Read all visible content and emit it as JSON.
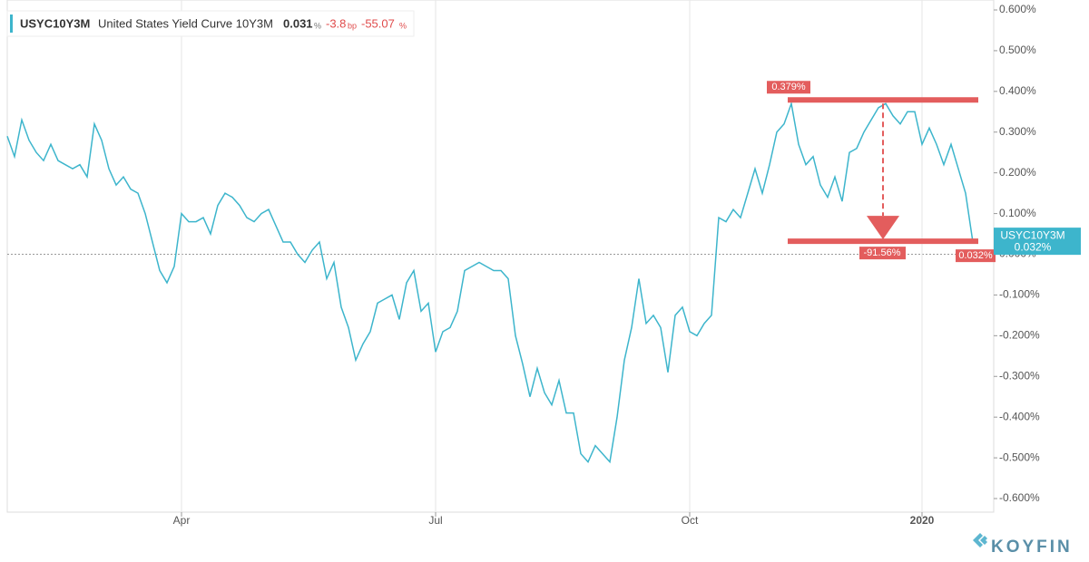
{
  "chart_data": {
    "type": "line",
    "header": {
      "ticker": "USYC10Y3M",
      "name": "United States Yield Curve 10Y3M",
      "value": 0.031,
      "value_unit": "%",
      "change": -3.8,
      "change_unit": "bp",
      "change_pct": -55.07,
      "change_pct_unit": "%"
    },
    "categories": [
      null,
      null,
      null,
      null,
      null,
      null,
      null,
      null,
      null,
      null,
      null,
      null,
      null,
      null,
      null,
      null,
      null,
      null,
      null,
      null,
      null,
      null,
      null,
      null,
      "Apr",
      null,
      null,
      null,
      null,
      null,
      null,
      null,
      null,
      null,
      null,
      null,
      null,
      null,
      null,
      null,
      null,
      null,
      null,
      null,
      null,
      null,
      null,
      null,
      null,
      null,
      null,
      null,
      null,
      null,
      null,
      null,
      null,
      null,
      null,
      "Jul",
      null,
      null,
      null,
      null,
      null,
      null,
      null,
      null,
      null,
      null,
      null,
      null,
      null,
      null,
      null,
      null,
      null,
      null,
      null,
      null,
      null,
      null,
      null,
      null,
      null,
      null,
      null,
      null,
      null,
      null,
      null,
      null,
      null,
      null,
      "Oct",
      null,
      null,
      null,
      null,
      null,
      null,
      null,
      null,
      null,
      null,
      null,
      null,
      null,
      null,
      null,
      null,
      null,
      null,
      null,
      null,
      null,
      null,
      null,
      null,
      null,
      null,
      null,
      null,
      null,
      null,
      null,
      "2020",
      null,
      null,
      null,
      null,
      null,
      null,
      null
    ],
    "series": [
      {
        "name": "USYC10Y3M",
        "color": "#3db5cc",
        "values": [
          0.29,
          0.24,
          0.33,
          0.28,
          0.25,
          0.23,
          0.27,
          0.23,
          0.22,
          0.21,
          0.22,
          0.19,
          0.32,
          0.28,
          0.21,
          0.17,
          0.19,
          0.16,
          0.15,
          0.1,
          0.03,
          -0.04,
          -0.07,
          -0.03,
          0.1,
          0.08,
          0.08,
          0.09,
          0.05,
          0.12,
          0.15,
          0.14,
          0.12,
          0.09,
          0.08,
          0.1,
          0.11,
          0.07,
          0.03,
          0.03,
          0.0,
          -0.02,
          0.01,
          0.03,
          -0.06,
          -0.02,
          -0.13,
          -0.18,
          -0.26,
          -0.22,
          -0.19,
          -0.12,
          -0.11,
          -0.1,
          -0.16,
          -0.07,
          -0.04,
          -0.14,
          -0.12,
          -0.24,
          -0.19,
          -0.18,
          -0.14,
          -0.04,
          -0.03,
          -0.02,
          -0.03,
          -0.04,
          -0.04,
          -0.06,
          -0.2,
          -0.27,
          -0.35,
          -0.28,
          -0.34,
          -0.37,
          -0.31,
          -0.39,
          -0.39,
          -0.49,
          -0.51,
          -0.47,
          -0.49,
          -0.51,
          -0.4,
          -0.26,
          -0.18,
          -0.06,
          -0.17,
          -0.15,
          -0.18,
          -0.29,
          -0.15,
          -0.13,
          -0.19,
          -0.2,
          -0.17,
          -0.15,
          0.09,
          0.08,
          0.11,
          0.09,
          0.15,
          0.21,
          0.15,
          0.22,
          0.3,
          0.32,
          0.37,
          0.27,
          0.22,
          0.24,
          0.17,
          0.14,
          0.19,
          0.13,
          0.25,
          0.26,
          0.3,
          0.33,
          0.36,
          0.37,
          0.34,
          0.32,
          0.35,
          0.35,
          0.27,
          0.31,
          0.27,
          0.22,
          0.27,
          0.21,
          0.15,
          0.03
        ]
      }
    ],
    "ylim": [
      -0.6,
      0.6
    ],
    "yticks": [
      {
        "value": 0.6,
        "label": "0.600%"
      },
      {
        "value": 0.5,
        "label": "0.500%"
      },
      {
        "value": 0.4,
        "label": "0.400%"
      },
      {
        "value": 0.3,
        "label": "0.300%"
      },
      {
        "value": 0.2,
        "label": "0.200%"
      },
      {
        "value": 0.1,
        "label": "0.100%"
      },
      {
        "value": 0,
        "label": "0.000%"
      },
      {
        "value": -0.1,
        "label": "-0.100%"
      },
      {
        "value": -0.2,
        "label": "-0.200%"
      },
      {
        "value": -0.3,
        "label": "-0.300%"
      },
      {
        "value": -0.4,
        "label": "-0.400%"
      },
      {
        "value": -0.5,
        "label": "-0.500%"
      },
      {
        "value": -0.6,
        "label": "-0.600%"
      }
    ],
    "grid": true,
    "annotations": {
      "high": {
        "value": 0.379,
        "label": "0.379%"
      },
      "low": {
        "value": 0.032,
        "label": "0.032%"
      },
      "change": "-91.56%",
      "last_tag": {
        "name": "USYC10Y3M",
        "value": 0.032,
        "label": "0.032%"
      }
    },
    "brand": "KOYFIN"
  }
}
